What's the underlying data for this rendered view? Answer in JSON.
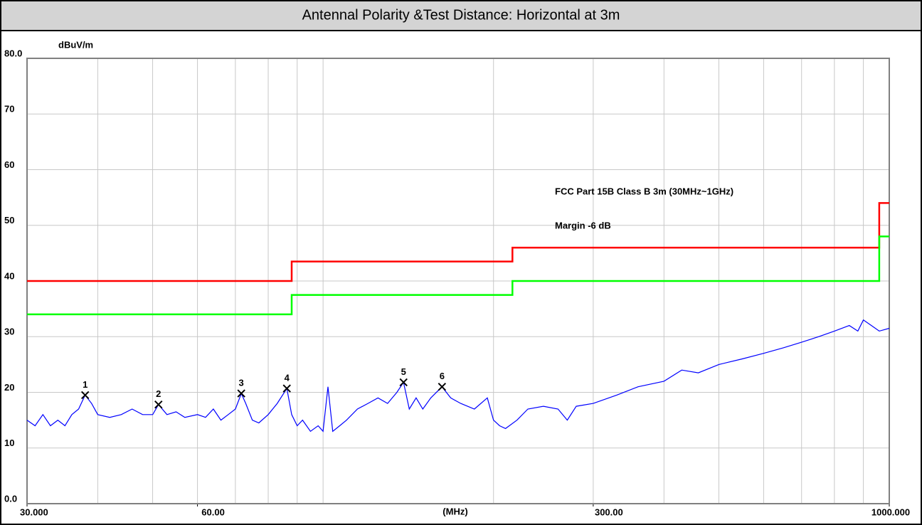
{
  "chart_data": {
    "type": "line",
    "title": "Antennal Polarity &Test Distance: Horizontal at 3m",
    "ylabel": "dBuV/m",
    "xlabel": "(MHz)",
    "log_x": true,
    "grid": true,
    "xlim": [
      30,
      1000
    ],
    "ylim": [
      0,
      80
    ],
    "xticks": [
      {
        "value": 30,
        "label": "30.000"
      },
      {
        "value": 60,
        "label": "60.00"
      },
      {
        "value": 300,
        "label": "300.00"
      },
      {
        "value": 1000,
        "label": "1000.000"
      }
    ],
    "xgrid": [
      40,
      50,
      60,
      70,
      80,
      90,
      100,
      200,
      300,
      400,
      500,
      600,
      700,
      800,
      900
    ],
    "yticks": [
      {
        "value": 0,
        "label": "0.0"
      },
      10,
      20,
      30,
      40,
      50,
      60,
      70,
      {
        "value": 80,
        "label": "80.0"
      }
    ],
    "series": [
      {
        "name": "FCC Part 15B Class B 3m (30MHz~1GHz)",
        "color": "#ff0000",
        "x": [
          30,
          88,
          88,
          216,
          216,
          960,
          960,
          1000
        ],
        "values": [
          40,
          40,
          43.5,
          43.5,
          46,
          46,
          54,
          54
        ]
      },
      {
        "name": "Margin -6 dB",
        "color": "#00ff00",
        "x": [
          30,
          88,
          88,
          216,
          216,
          960,
          960,
          1000
        ],
        "values": [
          34,
          34,
          37.5,
          37.5,
          40,
          40,
          48,
          48
        ]
      },
      {
        "color": "#0000ff",
        "x": [
          30,
          31,
          32,
          33,
          34,
          35,
          36,
          37,
          38,
          39,
          40,
          42,
          44,
          46,
          48,
          50,
          51.2,
          53,
          55,
          57,
          60,
          62,
          64,
          66,
          68,
          70,
          71.7,
          73,
          75,
          77,
          80,
          83,
          86.3,
          88,
          90,
          92,
          95,
          98,
          100,
          102,
          104,
          107,
          110,
          115,
          120,
          125,
          130,
          135,
          138.7,
          142,
          146,
          150,
          155,
          162.2,
          168,
          175,
          185,
          195,
          200,
          205,
          210,
          220,
          230,
          245,
          260,
          270,
          280,
          300,
          330,
          360,
          400,
          430,
          460,
          500,
          550,
          600,
          650,
          700,
          750,
          800,
          850,
          880,
          900,
          930,
          960,
          1000
        ],
        "values": [
          15,
          14,
          16,
          14,
          15,
          14,
          16,
          17,
          19.5,
          18,
          16,
          15.5,
          16,
          17,
          16,
          16,
          17.8,
          16,
          16.5,
          15.5,
          16,
          15.5,
          17,
          15,
          16,
          17,
          19.8,
          18,
          15,
          14.5,
          16,
          18,
          20.7,
          16,
          14,
          15,
          13,
          14,
          13,
          21,
          13,
          14,
          15,
          17,
          18,
          19,
          18,
          20,
          21.8,
          17,
          19,
          17,
          19,
          21,
          19,
          18,
          17,
          19,
          15,
          14,
          13.5,
          15,
          17,
          17.5,
          17,
          15,
          17.5,
          18,
          19.5,
          21,
          22,
          24,
          23.5,
          25,
          26,
          27,
          28,
          29,
          30,
          31,
          32,
          31,
          33,
          32,
          31,
          31.5
        ]
      }
    ],
    "markers": [
      {
        "label": "1",
        "x": 38,
        "value": 19.5
      },
      {
        "label": "2",
        "x": 51.2,
        "value": 17.8
      },
      {
        "label": "3",
        "x": 71.7,
        "value": 19.8
      },
      {
        "label": "4",
        "x": 86.3,
        "value": 20.7
      },
      {
        "label": "5",
        "x": 138.7,
        "value": 21.8
      },
      {
        "label": "6",
        "x": 162.2,
        "value": 21
      }
    ]
  }
}
